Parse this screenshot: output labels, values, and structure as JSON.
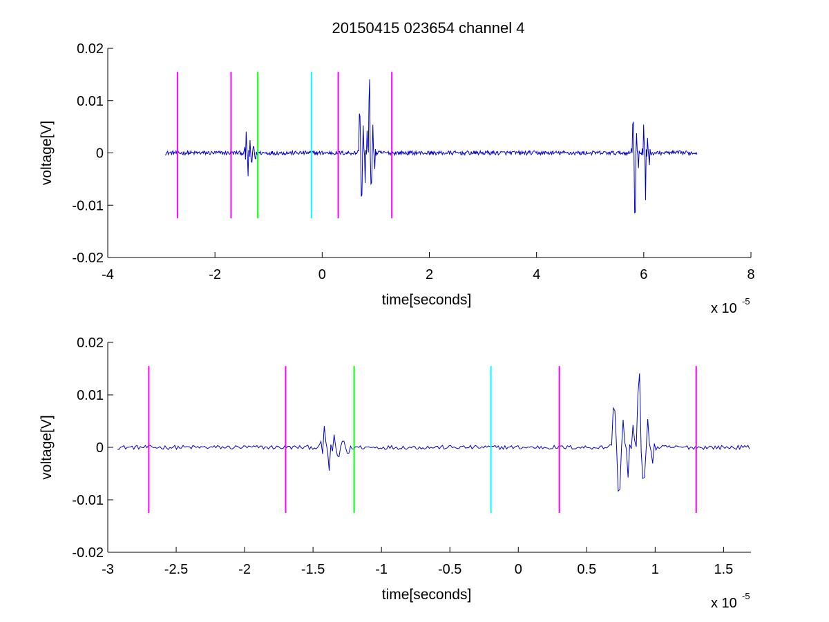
{
  "figure": {
    "title": "20150415 023654 channel 4"
  },
  "chart_data": [
    {
      "type": "line",
      "title": "20150415 023654 channel 4",
      "xlabel": "time[seconds]",
      "ylabel": "voltage[V]",
      "x_exponent_label": "x 10",
      "x_exponent": "-5",
      "xlim": [
        -4,
        8
      ],
      "ylim": [
        -0.02,
        0.02
      ],
      "xticks": [
        -4,
        -2,
        0,
        2,
        4,
        6,
        8
      ],
      "xtick_labels": [
        "-4",
        "-2",
        "0",
        "2",
        "4",
        "6",
        "8"
      ],
      "yticks": [
        0.02,
        0.01,
        0,
        -0.01,
        -0.02
      ],
      "ytick_labels": [
        "0.02",
        "0.01",
        "0",
        "-0.01",
        "-0.02"
      ],
      "grid": false,
      "trace": {
        "color": "#0000cc",
        "x_range": [
          -2.93,
          7.0
        ],
        "baseline_noise": 0.0004,
        "bursts": [
          {
            "t": -1.42,
            "amps": [
              0.0042,
              -0.0042,
              0.0025,
              -0.002,
              0.0012,
              -0.001
            ]
          },
          {
            "t": 0.7,
            "amps": [
              0.0073,
              -0.008,
              0.0055,
              -0.006,
              0.004,
              -0.0035
            ]
          },
          {
            "t": 0.88,
            "amps": [
              0.0138,
              -0.006,
              0.005,
              -0.003
            ]
          },
          {
            "t": 5.8,
            "amps": [
              0.0058,
              -0.0112,
              0.004,
              -0.003
            ]
          },
          {
            "t": 6.0,
            "amps": [
              0.0052,
              -0.0088,
              0.003,
              -0.002
            ]
          }
        ]
      },
      "markers": [
        {
          "x": -2.7,
          "color": "#ff00ff"
        },
        {
          "x": -1.7,
          "color": "#ff00ff"
        },
        {
          "x": -1.2,
          "color": "#00ff00"
        },
        {
          "x": -0.2,
          "color": "#00ffff"
        },
        {
          "x": 0.3,
          "color": "#ff00ff"
        },
        {
          "x": 1.3,
          "color": "#ff00ff"
        }
      ],
      "marker_y_range": [
        -0.0125,
        0.0155
      ]
    },
    {
      "type": "line",
      "title": "",
      "xlabel": "time[seconds]",
      "ylabel": "voltage[V]",
      "x_exponent_label": "x 10",
      "x_exponent": "-5",
      "xlim": [
        -3.0,
        1.7
      ],
      "ylim": [
        -0.02,
        0.02
      ],
      "xticks": [
        -3,
        -2.5,
        -2,
        -1.5,
        -1,
        -0.5,
        0,
        0.5,
        1,
        1.5
      ],
      "xtick_labels": [
        "-3",
        "-2.5",
        "-2",
        "-1.5",
        "-1",
        "-0.5",
        "0",
        "0.5",
        "1",
        "1.5"
      ],
      "yticks": [
        0.02,
        0.01,
        0,
        -0.01,
        -0.02
      ],
      "ytick_labels": [
        "0.02",
        "0.01",
        "0",
        "-0.01",
        "-0.02"
      ],
      "grid": false,
      "trace": {
        "color": "#0000cc",
        "x_range": [
          -2.93,
          1.7
        ],
        "baseline_noise": 0.0004,
        "bursts": [
          {
            "t": -1.42,
            "amps": [
              0.0042,
              -0.0042,
              0.0025,
              -0.002,
              0.0012,
              -0.001
            ]
          },
          {
            "t": 0.7,
            "amps": [
              0.0073,
              -0.008,
              0.0055,
              -0.006,
              0.004,
              -0.0035
            ]
          },
          {
            "t": 0.88,
            "amps": [
              0.0138,
              -0.006,
              0.005,
              -0.003
            ]
          }
        ]
      },
      "markers": [
        {
          "x": -2.7,
          "color": "#ff00ff"
        },
        {
          "x": -1.7,
          "color": "#ff00ff"
        },
        {
          "x": -1.2,
          "color": "#00ff00"
        },
        {
          "x": -0.2,
          "color": "#00ffff"
        },
        {
          "x": 0.3,
          "color": "#ff00ff"
        },
        {
          "x": 1.3,
          "color": "#ff00ff"
        }
      ],
      "marker_y_range": [
        -0.0125,
        0.0155
      ]
    }
  ]
}
